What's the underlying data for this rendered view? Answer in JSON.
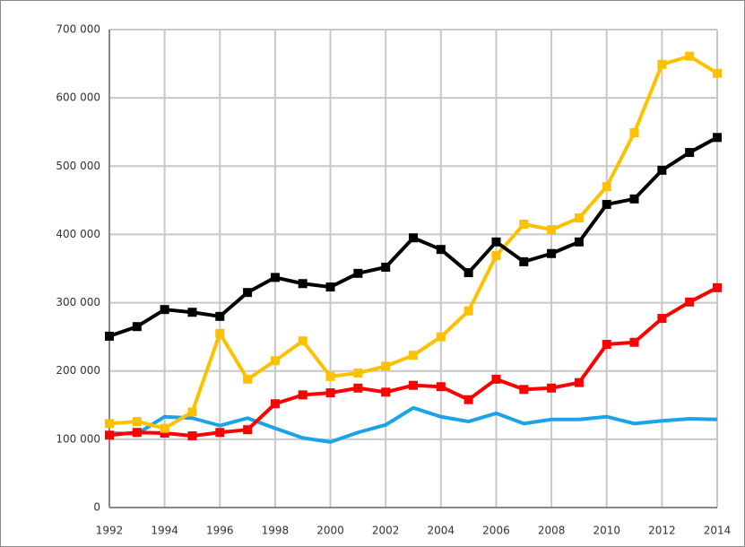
{
  "chart_data": {
    "type": "line",
    "x": [
      1992,
      1993,
      1994,
      1995,
      1996,
      1997,
      1998,
      1999,
      2000,
      2001,
      2002,
      2003,
      2004,
      2005,
      2006,
      2007,
      2008,
      2009,
      2010,
      2011,
      2012,
      2013,
      2014
    ],
    "xlim": [
      1992,
      2014
    ],
    "xticks": [
      1992,
      1994,
      1996,
      1998,
      2000,
      2002,
      2004,
      2006,
      2008,
      2010,
      2012,
      2014
    ],
    "ylim": [
      0,
      700000
    ],
    "yticks": [
      0,
      {
        "value": 100000,
        "label": "100 000"
      },
      {
        "value": 200000,
        "label": "200 000"
      },
      {
        "value": 300000,
        "label": "300 000"
      },
      {
        "value": 400000,
        "label": "400 000"
      },
      {
        "value": 500000,
        "label": "500 000"
      },
      {
        "value": 600000,
        "label": "600 000"
      },
      {
        "value": 700000,
        "label": "700 000"
      }
    ],
    "grid": true,
    "series": [
      {
        "color": "#1aa3e8",
        "markers": false,
        "values": [
          109000,
          108000,
          133000,
          131000,
          120000,
          131000,
          116000,
          102000,
          96000,
          110000,
          121000,
          146000,
          133000,
          126000,
          138000,
          123000,
          129000,
          129000,
          133000,
          123000,
          127000,
          130000,
          129000
        ]
      },
      {
        "color": "#ff0000",
        "markers": true,
        "values": [
          106000,
          110000,
          109000,
          105000,
          110000,
          114000,
          152000,
          165000,
          168000,
          175000,
          169000,
          179000,
          177000,
          158000,
          188000,
          173000,
          175000,
          183000,
          239000,
          242000,
          277000,
          301000,
          322000
        ]
      },
      {
        "color": "#ffc000",
        "markers": true,
        "values": [
          123000,
          126000,
          116000,
          140000,
          255000,
          188000,
          215000,
          244000,
          192000,
          197000,
          207000,
          223000,
          250000,
          288000,
          369000,
          415000,
          407000,
          424000,
          470000,
          549000,
          649000,
          661000,
          636000
        ]
      },
      {
        "color": "#000000",
        "markers": true,
        "values": [
          251000,
          265000,
          290000,
          286000,
          280000,
          315000,
          337000,
          328000,
          323000,
          343000,
          352000,
          395000,
          378000,
          344000,
          389000,
          360000,
          372000,
          389000,
          444000,
          452000,
          494000,
          520000,
          542000
        ]
      }
    ]
  }
}
